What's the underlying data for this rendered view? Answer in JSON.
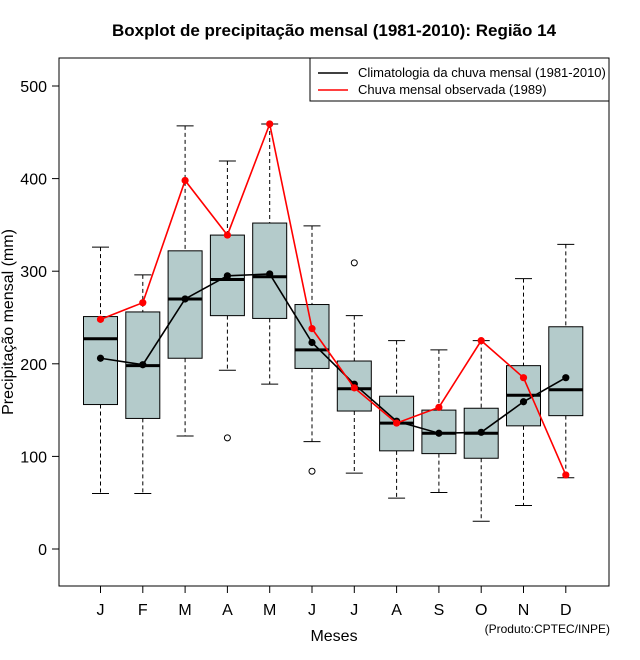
{
  "chart_data": {
    "type": "boxplot",
    "title": "Boxplot de precipitação mensal (1981-2010): Região 14",
    "xlabel": "Meses",
    "ylabel": "Precipitação mensal (mm)",
    "ylim": [
      -40,
      540
    ],
    "yticks": [
      "0",
      "100",
      "200",
      "300",
      "400",
      "500"
    ],
    "ytick_values": [
      0,
      100,
      200,
      300,
      400,
      500
    ],
    "categories": [
      "J",
      "F",
      "M",
      "A",
      "M",
      "J",
      "J",
      "A",
      "S",
      "O",
      "N",
      "D"
    ],
    "boxes": [
      {
        "whisker_low": 60,
        "q1": 156,
        "median": 227,
        "q3": 251,
        "whisker_high": 326,
        "outliers": []
      },
      {
        "whisker_low": 60,
        "q1": 141,
        "median": 198,
        "q3": 256,
        "whisker_high": 296,
        "outliers": []
      },
      {
        "whisker_low": 122,
        "q1": 206,
        "median": 270,
        "q3": 322,
        "whisker_high": 457,
        "outliers": []
      },
      {
        "whisker_low": 193,
        "q1": 252,
        "median": 291,
        "q3": 339,
        "whisker_high": 419,
        "outliers": [
          120
        ]
      },
      {
        "whisker_low": 178,
        "q1": 249,
        "median": 294,
        "q3": 352,
        "whisker_high": 459,
        "outliers": []
      },
      {
        "whisker_low": 116,
        "q1": 195,
        "median": 215,
        "q3": 264,
        "whisker_high": 349,
        "outliers": [
          84
        ]
      },
      {
        "whisker_low": 82,
        "q1": 149,
        "median": 173,
        "q3": 203,
        "whisker_high": 252,
        "outliers": [
          309
        ]
      },
      {
        "whisker_low": 55,
        "q1": 106,
        "median": 136,
        "q3": 165,
        "whisker_high": 225,
        "outliers": []
      },
      {
        "whisker_low": 61,
        "q1": 103,
        "median": 125,
        "q3": 150,
        "whisker_high": 215,
        "outliers": []
      },
      {
        "whisker_low": 30,
        "q1": 98,
        "median": 125,
        "q3": 152,
        "whisker_high": 225,
        "outliers": []
      },
      {
        "whisker_low": 47,
        "q1": 133,
        "median": 166,
        "q3": 198,
        "whisker_high": 292,
        "outliers": []
      },
      {
        "whisker_low": 77,
        "q1": 144,
        "median": 172,
        "q3": 240,
        "whisker_high": 329,
        "outliers": []
      }
    ],
    "series": [
      {
        "name": "Climatologia da chuva mensal (1981-2010)",
        "color": "#000000",
        "values": [
          206,
          199,
          270,
          295,
          297,
          223,
          178,
          138,
          125,
          126,
          159,
          185
        ]
      },
      {
        "name": "Chuva mensal observada (1989)",
        "color": "#ff0000",
        "values": [
          248,
          266,
          398,
          339,
          459,
          238,
          174,
          136,
          153,
          225,
          185,
          80
        ]
      }
    ],
    "box_fill": "#b4cbcb",
    "legend_position": "top-right",
    "grid": false
  },
  "credit": "(Produto:CPTEC/INPE)"
}
